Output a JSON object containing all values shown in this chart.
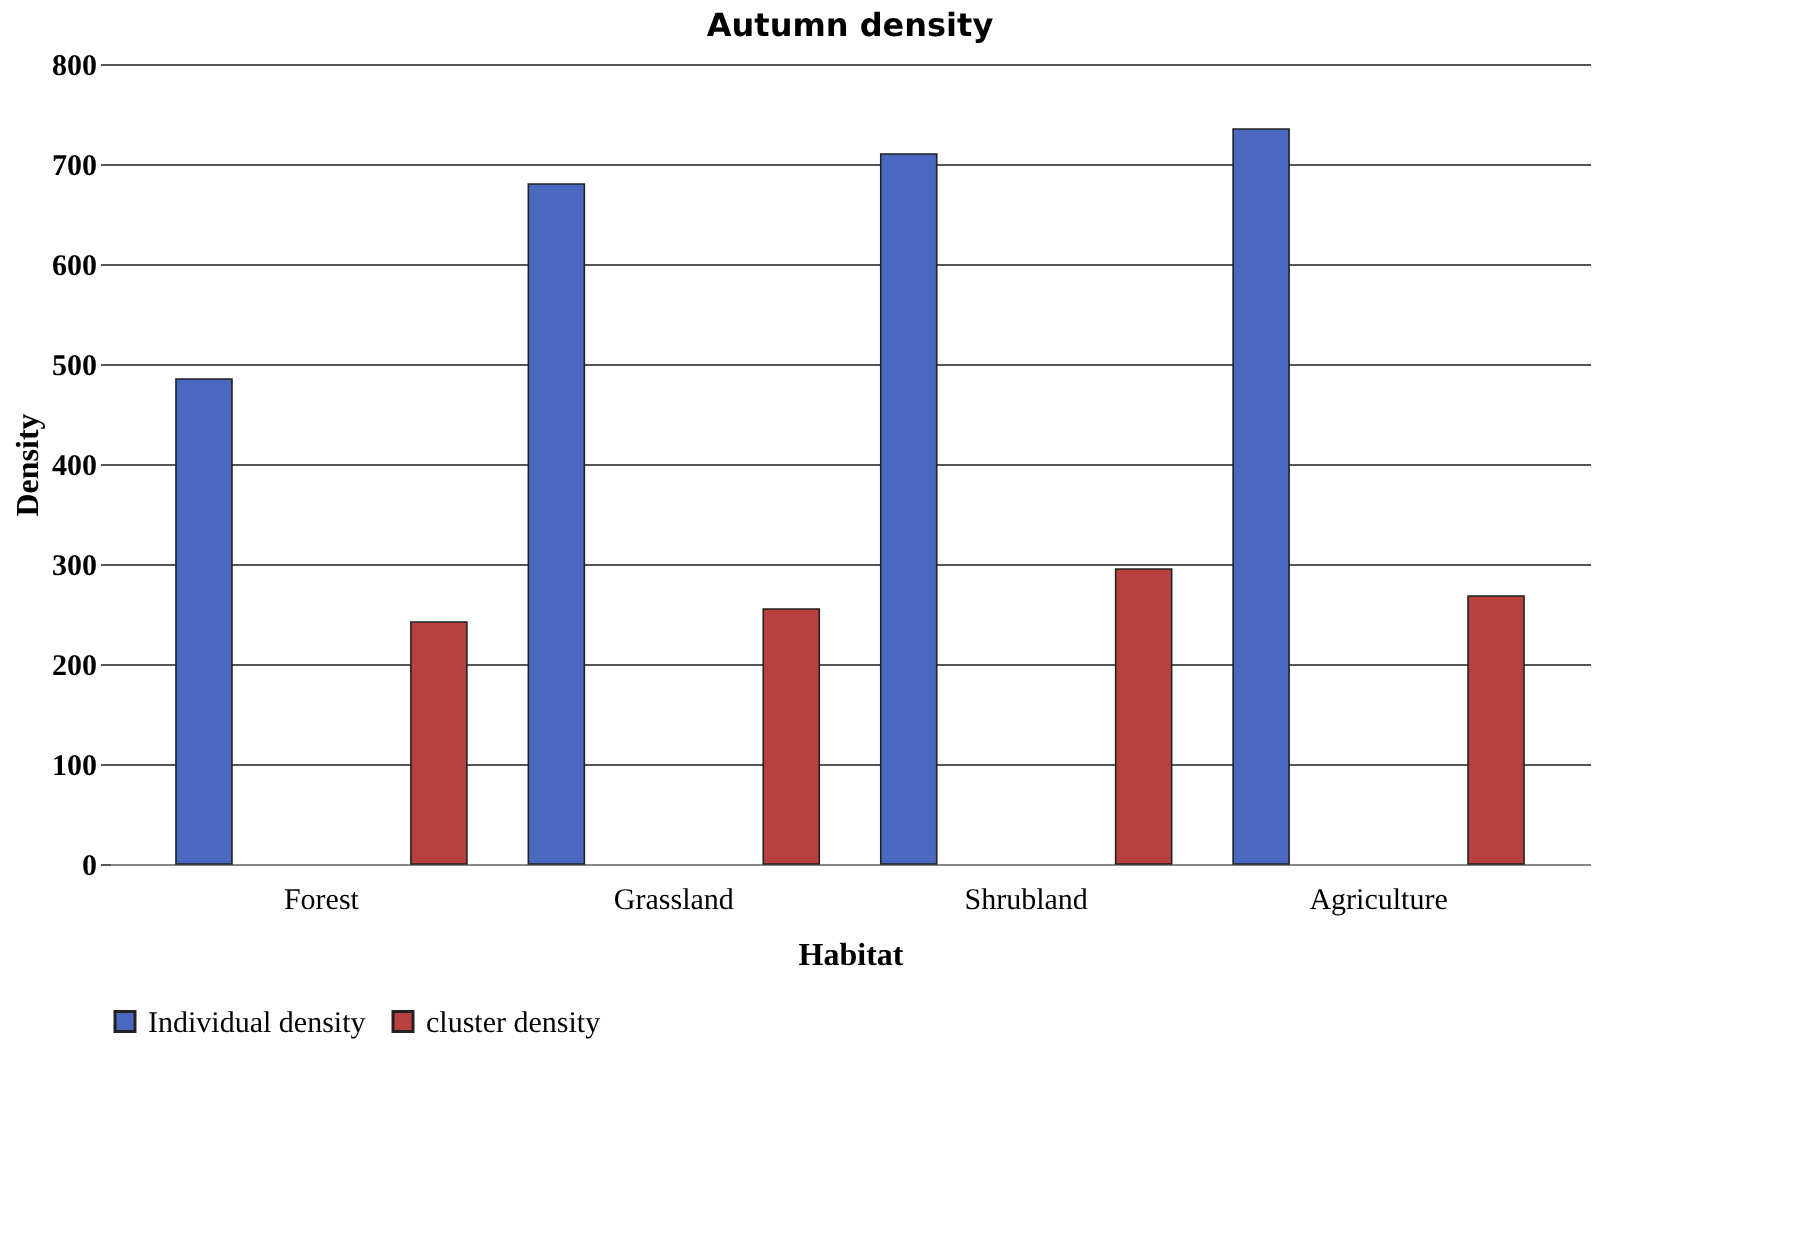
{
  "chart_data": {
    "type": "bar",
    "title": "Autumn density",
    "xlabel": "Habitat",
    "ylabel": "Density",
    "categories": [
      "Forest",
      "Grassland",
      "Shrubland",
      "Agriculture"
    ],
    "series": [
      {
        "name": "Individual density",
        "color": "#4a68c0",
        "values": [
          485,
          680,
          710,
          735
        ]
      },
      {
        "name": "cluster density",
        "color": "#b8413f",
        "values": [
          242,
          255,
          295,
          268
        ]
      }
    ],
    "ylim": [
      0,
      800
    ],
    "yticks": [
      0,
      100,
      200,
      300,
      400,
      500,
      600,
      700,
      800
    ],
    "grid": "y",
    "legend": "bottom"
  }
}
